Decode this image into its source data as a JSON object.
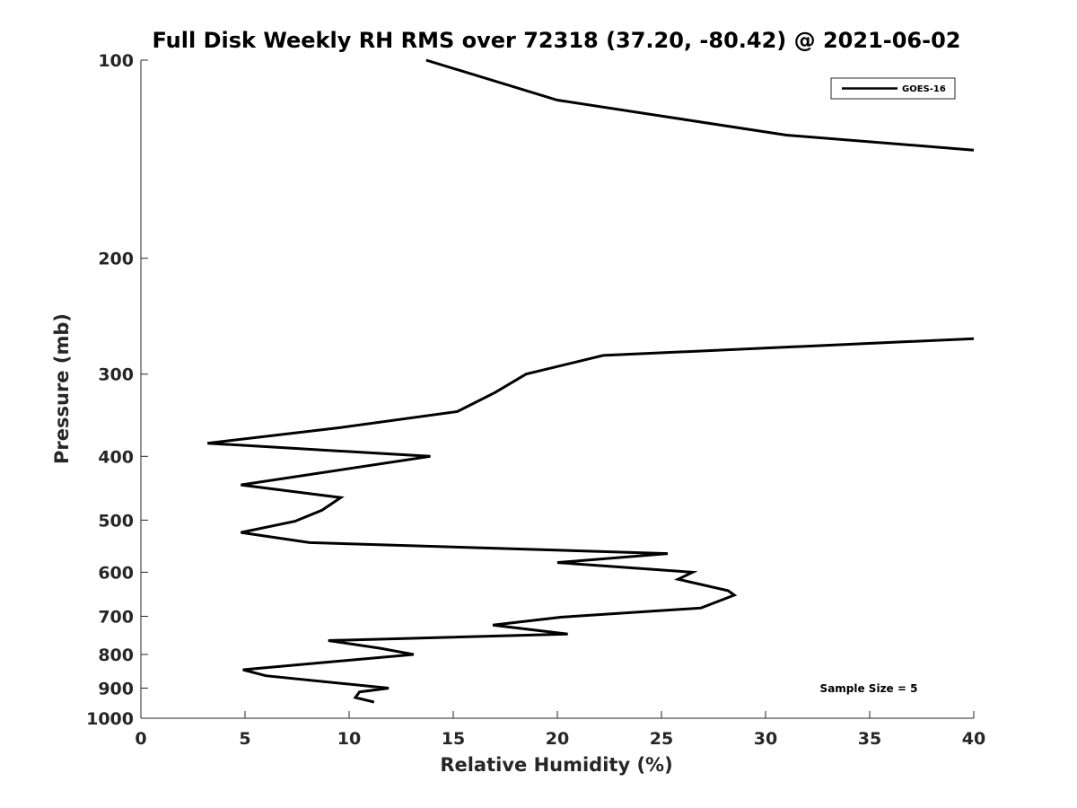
{
  "chart_data": {
    "type": "line",
    "title": "Full Disk Weekly RH RMS over 72318 (37.20, -80.42) @ 2021-06-02",
    "xlabel": "Relative Humidity (%)",
    "ylabel": "Pressure (mb)",
    "xlim": [
      0,
      40
    ],
    "ylim": [
      100,
      1000
    ],
    "y_scale": "log",
    "y_reversed": true,
    "x_ticks": [
      0,
      5,
      10,
      15,
      20,
      25,
      30,
      35,
      40
    ],
    "y_ticks": [
      100,
      200,
      300,
      400,
      500,
      600,
      700,
      800,
      900,
      1000
    ],
    "grid": false,
    "legend_position": "top-right",
    "annotation": "Sample Size = 5",
    "series": [
      {
        "name": "GOES-16",
        "color": "#000000",
        "segments": [
          {
            "x": [
              13.7,
              20.0,
              31.0,
              40.0
            ],
            "y": [
              100,
              115,
              130,
              137
            ]
          },
          {
            "x": [
              40.0,
              22.2,
              18.5,
              17.0,
              15.2,
              9.5,
              3.2,
              13.9,
              4.8,
              9.6,
              8.7,
              7.4,
              4.8,
              8.1,
              25.3,
              20.0,
              26.5,
              25.8,
              28.2,
              28.5,
              26.9,
              20.2,
              16.9,
              20.5,
              9.0,
              11.5,
              13.1,
              4.9,
              6.0,
              11.9,
              10.5,
              10.3,
              11.2
            ],
            "y": [
              265,
              281,
              300,
              320,
              342,
              362,
              382,
              400,
              442,
              462,
              483,
              502,
              522,
              541,
              562,
              580,
              600,
              615,
              640,
              650,
              680,
              702,
              722,
              745,
              762,
              783,
              800,
              844,
              862,
              900,
              912,
              930,
              945
            ]
          }
        ]
      }
    ]
  }
}
